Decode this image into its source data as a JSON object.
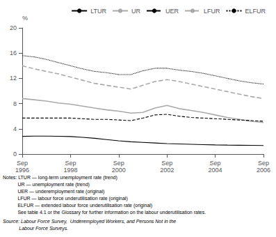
{
  "chart_data": {
    "type": "line",
    "ylabel": "%",
    "categories": [
      "Sep\n1996",
      null,
      null,
      null,
      "Sep\n1998",
      null,
      null,
      null,
      "Sep\n2000",
      null,
      null,
      null,
      "Sep\n2002",
      null,
      null,
      null,
      "Sep\n2004",
      null,
      null,
      null,
      "Sep\n2006"
    ],
    "series": [
      {
        "name": "LTUR",
        "color": "#000000",
        "line_style": "solid",
        "values": [
          2.8,
          2.85,
          2.85,
          2.82,
          2.78,
          2.65,
          2.5,
          2.3,
          2.1,
          1.95,
          1.85,
          1.75,
          1.65,
          1.6,
          1.55,
          1.5,
          1.45,
          1.42,
          1.4,
          1.38,
          1.35
        ]
      },
      {
        "name": "UR",
        "color": "#aaaaaa",
        "line_style": "solid",
        "values": [
          8.8,
          8.6,
          8.4,
          8.1,
          7.9,
          7.6,
          7.3,
          7.0,
          6.8,
          6.5,
          6.6,
          7.3,
          7.7,
          7.2,
          6.9,
          6.6,
          6.2,
          5.8,
          5.5,
          5.2,
          5.0
        ]
      },
      {
        "name": "UER",
        "color": "#000000",
        "line_style": "dashed",
        "values": [
          5.7,
          5.7,
          5.7,
          5.7,
          5.7,
          5.6,
          5.5,
          5.5,
          5.4,
          5.3,
          5.7,
          6.2,
          6.3,
          6.0,
          5.8,
          5.7,
          5.6,
          5.5,
          5.4,
          5.3,
          5.2
        ]
      },
      {
        "name": "LFUR",
        "color": "#aaaaaa",
        "line_style": "dashed",
        "values": [
          14.0,
          13.5,
          13.1,
          12.7,
          12.2,
          11.7,
          11.2,
          10.9,
          10.6,
          10.3,
          10.9,
          11.5,
          11.8,
          11.5,
          11.1,
          10.7,
          10.3,
          9.9,
          9.5,
          9.1,
          8.8
        ]
      },
      {
        "name": "ELFUR",
        "color": "#000000",
        "line_style": "dotted",
        "values": [
          15.6,
          15.4,
          15.0,
          14.5,
          14.0,
          13.5,
          13.1,
          12.9,
          12.6,
          12.6,
          13.2,
          13.6,
          13.6,
          13.3,
          13.1,
          12.8,
          12.4,
          12.0,
          11.6,
          11.3,
          11.1
        ]
      }
    ],
    "ylim": [
      0,
      20
    ],
    "yticks": [
      0,
      4,
      8,
      12,
      16,
      20
    ],
    "grid": false,
    "legend": "upper right",
    "notes": [
      "Notes: LTUR — long-term unemployment rate (trend)",
      "           UR — unemployment rate (trend)",
      "           UER — underemployment rate (original)",
      "           LFUR — labour force underutilisation rate (original)",
      "           ELFUR — extended labour force underutilisation rate (original)",
      "           See table 4.1 or the Glossary for further information on the labour underutilisation rates."
    ],
    "source": [
      "Source: Labour Force Survey,  Underemployed Workers, and Persons Not in the",
      "            Labour Force Surveys."
    ]
  }
}
